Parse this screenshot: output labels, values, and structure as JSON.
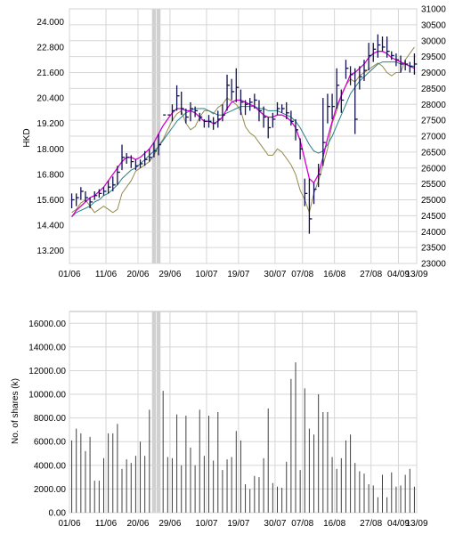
{
  "colors": {
    "background": "#ffffff",
    "grid": "#d6d6d6",
    "frame": "#b8b8b8",
    "candle": "#101050",
    "sma_short": "#d400d4",
    "sma_long": "#2a7f86",
    "index_line": "#948a4a",
    "volume_bar": "#404040",
    "holiday_band": "#d0d0d0"
  },
  "chart_data": [
    {
      "type": "line",
      "ylabel": "HKD",
      "x_tick_labels": [
        "01/06",
        "11/06",
        "20/06",
        "29/06",
        "10/07",
        "19/07",
        "30/07",
        "07/08",
        "16/08",
        "27/08",
        "04/09",
        "13/09"
      ],
      "y_ticks": [
        "13.200",
        "14.400",
        "15.600",
        "16.800",
        "18.000",
        "19.200",
        "20.400",
        "21.600",
        "22.800",
        "24.000"
      ],
      "y_ticks_right": [
        "23000",
        "23500",
        "24000",
        "24500",
        "25000",
        "25500",
        "26000",
        "26500",
        "27000",
        "27500",
        "28000",
        "28500",
        "29000",
        "29500",
        "30000",
        "30500",
        "31000"
      ],
      "ylim": [
        12.6,
        24.6
      ],
      "ylim_right": [
        23000,
        31000
      ],
      "grid": true,
      "series": [
        {
          "kind": "hlc_bars",
          "values": [
            [
              15.9,
              15.2,
              15.6
            ],
            [
              15.9,
              15.3,
              15.7
            ],
            [
              16.2,
              15.6,
              16.0
            ],
            [
              16.0,
              15.5,
              15.7
            ],
            [
              15.7,
              15.2,
              15.5
            ],
            [
              16.0,
              15.6,
              15.8
            ],
            [
              16.1,
              15.7,
              15.9
            ],
            [
              16.2,
              15.8,
              16.0
            ],
            [
              16.5,
              15.9,
              16.2
            ],
            [
              16.7,
              16.0,
              16.3
            ],
            [
              17.2,
              16.3,
              16.9
            ],
            [
              18.2,
              17.0,
              17.6
            ],
            [
              17.8,
              17.3,
              17.6
            ],
            [
              17.7,
              17.1,
              17.4
            ],
            [
              17.5,
              17.0,
              17.2
            ],
            [
              17.5,
              17.1,
              17.3
            ],
            [
              17.9,
              17.2,
              17.5
            ],
            [
              18.0,
              17.4,
              17.6
            ],
            [
              18.3,
              17.6,
              17.9
            ],
            [
              18.7,
              17.7,
              18.2
            ],
            [
              19.6,
              19.6,
              19.6
            ],
            [
              19.6,
              19.6,
              19.6
            ],
            [
              20.1,
              19.3,
              19.8
            ],
            [
              21.0,
              19.8,
              20.5
            ],
            [
              20.7,
              19.6,
              19.9
            ],
            [
              19.9,
              19.2,
              19.5
            ],
            [
              20.2,
              19.3,
              19.9
            ],
            [
              20.0,
              19.5,
              19.8
            ],
            [
              19.7,
              19.3,
              19.5
            ],
            [
              19.4,
              19.0,
              19.3
            ],
            [
              19.6,
              19.0,
              19.3
            ],
            [
              19.5,
              18.9,
              19.2
            ],
            [
              19.8,
              19.0,
              19.4
            ],
            [
              20.1,
              19.3,
              19.6
            ],
            [
              21.5,
              19.8,
              21.0
            ],
            [
              21.3,
              20.3,
              20.7
            ],
            [
              21.8,
              20.2,
              20.9
            ],
            [
              20.8,
              19.6,
              20.2
            ],
            [
              20.3,
              19.6,
              20.1
            ],
            [
              20.4,
              19.8,
              20.2
            ],
            [
              20.6,
              19.9,
              20.3
            ],
            [
              20.3,
              19.3,
              19.8
            ],
            [
              20.0,
              19.0,
              19.5
            ],
            [
              19.5,
              18.5,
              19.0
            ],
            [
              19.7,
              19.0,
              19.4
            ],
            [
              20.2,
              19.6,
              19.9
            ],
            [
              20.1,
              19.7,
              19.9
            ],
            [
              20.2,
              19.4,
              19.7
            ],
            [
              19.8,
              19.1,
              19.3
            ],
            [
              19.4,
              18.4,
              18.9
            ],
            [
              18.5,
              17.5,
              18.0
            ],
            [
              16.6,
              15.3,
              15.9
            ],
            [
              16.6,
              14.0,
              14.7
            ],
            [
              16.4,
              15.4,
              16.1
            ],
            [
              17.3,
              16.2,
              16.8
            ],
            [
              20.4,
              17.2,
              18.3
            ],
            [
              20.6,
              19.2,
              20.0
            ],
            [
              20.6,
              19.4,
              20.0
            ],
            [
              21.8,
              19.9,
              21.0
            ],
            [
              20.8,
              19.7,
              20.3
            ],
            [
              22.2,
              21.3,
              21.8
            ],
            [
              21.9,
              21.0,
              21.5
            ],
            [
              21.8,
              18.7,
              19.4
            ],
            [
              21.9,
              20.8,
              21.4
            ],
            [
              22.2,
              21.2,
              21.7
            ],
            [
              23.0,
              21.7,
              22.4
            ],
            [
              23.0,
              22.1,
              22.7
            ],
            [
              23.4,
              22.3,
              22.9
            ],
            [
              23.3,
              22.6,
              22.8
            ],
            [
              23.3,
              22.3,
              22.6
            ],
            [
              22.6,
              22.2,
              22.4
            ],
            [
              22.5,
              21.9,
              22.2
            ],
            [
              22.4,
              21.6,
              22.0
            ],
            [
              22.2,
              21.7,
              22.0
            ],
            [
              22.1,
              21.6,
              21.9
            ],
            [
              22.5,
              21.5,
              22.0
            ]
          ]
        },
        {
          "name": "",
          "kind": "sma_short",
          "values": [
            14.8,
            15.1,
            15.3,
            15.5,
            15.7,
            15.8,
            16.0,
            16.2,
            16.5,
            16.8,
            17.1,
            17.4,
            17.6,
            17.6,
            17.5,
            17.6,
            17.8,
            18.0,
            18.3,
            18.7,
            19.1,
            19.4,
            19.7,
            19.9,
            19.9,
            19.8,
            19.8,
            19.7,
            19.5,
            19.3,
            19.3,
            19.2,
            19.3,
            19.5,
            19.9,
            20.2,
            20.3,
            20.3,
            20.2,
            20.1,
            20.0,
            19.8,
            19.6,
            19.5,
            19.5,
            19.6,
            19.6,
            19.5,
            19.3,
            19.0,
            18.4,
            17.5,
            16.6,
            16.4,
            16.8,
            17.6,
            18.5,
            19.3,
            20.0,
            20.5,
            21.0,
            21.5,
            21.6,
            21.8,
            22.0,
            22.3,
            22.5,
            22.6,
            22.6,
            22.5,
            22.3,
            22.2,
            22.1,
            22.0,
            21.9,
            21.8
          ]
        },
        {
          "name": "",
          "kind": "sma_long",
          "values": [
            14.8,
            15.0,
            15.1,
            15.2,
            15.3,
            15.5,
            15.6,
            15.8,
            15.9,
            16.1,
            16.3,
            16.6,
            16.8,
            17.0,
            17.1,
            17.3,
            17.5,
            17.7,
            17.9,
            18.1,
            18.4,
            18.7,
            19.0,
            19.3,
            19.5,
            19.7,
            19.8,
            19.9,
            19.9,
            19.9,
            19.8,
            19.7,
            19.6,
            19.6,
            19.7,
            19.8,
            19.9,
            20.0,
            20.0,
            20.0,
            20.0,
            19.9,
            19.9,
            19.8,
            19.8,
            19.8,
            19.7,
            19.6,
            19.5,
            19.3,
            19.0,
            18.6,
            18.2,
            17.9,
            17.8,
            17.9,
            18.2,
            18.6,
            19.1,
            19.6,
            20.1,
            20.6,
            20.9,
            21.2,
            21.4,
            21.6,
            21.8,
            22.0,
            22.1,
            22.1,
            22.1,
            22.1,
            22.0,
            22.0,
            21.9,
            21.9
          ]
        },
        {
          "name": "",
          "kind": "index",
          "axis": "right",
          "values": [
            24600,
            24700,
            24900,
            25000,
            24800,
            24600,
            24700,
            24800,
            24700,
            24600,
            24700,
            25200,
            25400,
            25600,
            25900,
            26000,
            26100,
            26200,
            26400,
            26700,
            26900,
            27200,
            27500,
            27700,
            27800,
            27400,
            27200,
            27300,
            27600,
            27800,
            27800,
            27700,
            27900,
            28000,
            28200,
            28100,
            28000,
            27800,
            27300,
            27100,
            27000,
            26800,
            26600,
            26400,
            26400,
            26600,
            26500,
            26300,
            26100,
            25800,
            25300,
            25000,
            24600,
            25200,
            25600,
            26100,
            26600,
            27400,
            27800,
            28300,
            28600,
            28800,
            28700,
            28900,
            29000,
            29100,
            29200,
            29300,
            29200,
            29000,
            28900,
            29000,
            29000,
            29400,
            29600,
            29800
          ]
        }
      ]
    },
    {
      "type": "bar",
      "ylabel": "No. of shares (k)",
      "x_tick_labels": [
        "01/06",
        "11/06",
        "20/06",
        "29/06",
        "10/07",
        "19/07",
        "30/07",
        "07/08",
        "16/08",
        "27/08",
        "04/09",
        "13/09"
      ],
      "y_ticks": [
        "0.00",
        "2000.00",
        "4000.00",
        "6000.00",
        "8000.00",
        "10000.00",
        "12000.00",
        "14000.00",
        "16000.00"
      ],
      "ylim": [
        0,
        17000
      ],
      "grid": true,
      "values": [
        6100,
        7100,
        6700,
        5200,
        6400,
        2700,
        2700,
        4600,
        6700,
        6700,
        7500,
        3700,
        4500,
        4200,
        4800,
        6000,
        4800,
        8700,
        0,
        0,
        10300,
        4700,
        4600,
        8300,
        4000,
        8200,
        5500,
        4000,
        8700,
        4800,
        8200,
        4400,
        8500,
        3600,
        4500,
        4700,
        6900,
        6100,
        2400,
        2000,
        3100,
        3000,
        4600,
        8800,
        2500,
        2200,
        2100,
        4300,
        11300,
        12700,
        3600,
        10500,
        7100,
        6600,
        10000,
        8500,
        8500,
        4700,
        3700,
        4600,
        6100,
        6600,
        4200,
        3500,
        3300,
        2400,
        2300,
        1300,
        3200,
        1300,
        3400,
        2200,
        2300,
        3200,
        3700,
        2200
      ]
    }
  ]
}
